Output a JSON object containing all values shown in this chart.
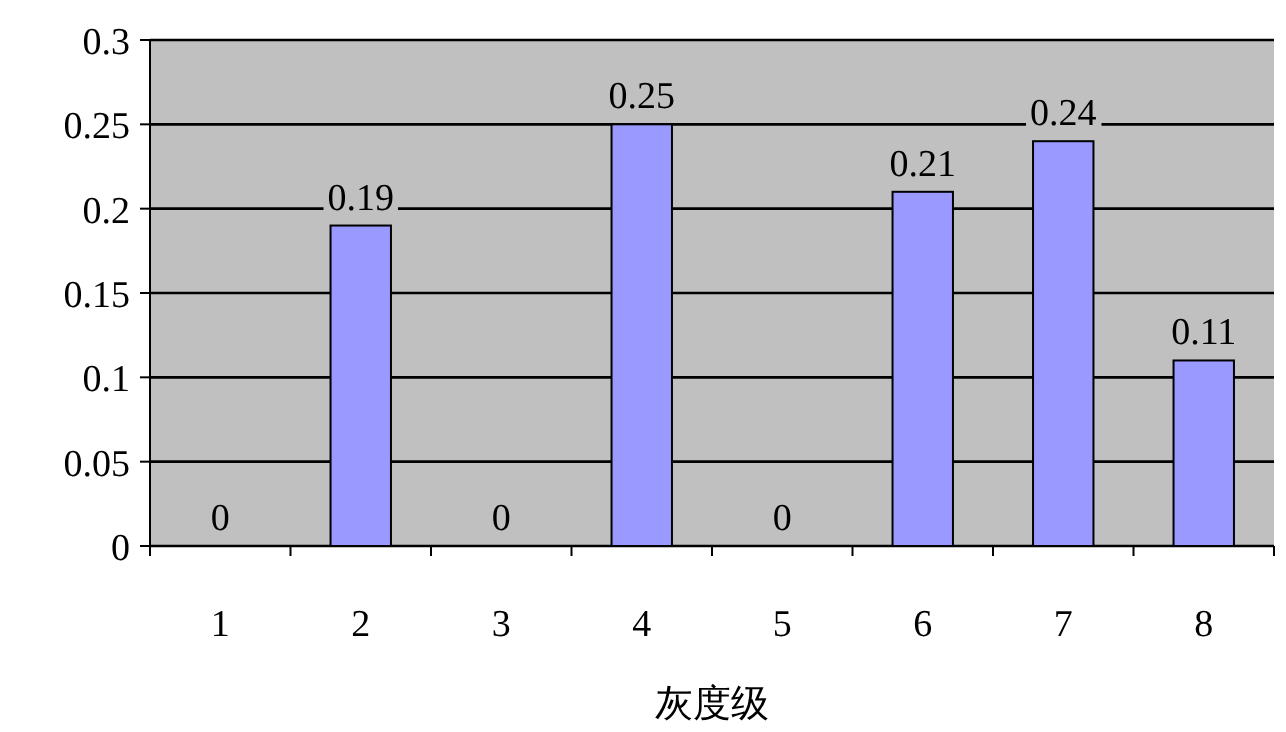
{
  "chart_data": {
    "type": "bar",
    "xlabel": "灰度级",
    "categories": [
      "1",
      "2",
      "3",
      "4",
      "5",
      "6",
      "7",
      "8"
    ],
    "values": [
      0,
      0.19,
      0,
      0.25,
      0,
      0.21,
      0.24,
      0.11
    ],
    "color": "#9999ff",
    "ylim": [
      0,
      0.3
    ],
    "yticks": [
      0,
      0.05,
      0.1,
      0.15,
      0.2,
      0.25,
      0.3
    ],
    "grid": "y",
    "data_labels": true
  }
}
